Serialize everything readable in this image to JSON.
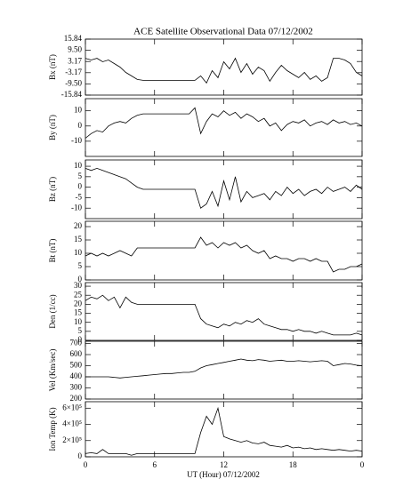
{
  "title": "ACE Satellite Observational Data   07/12/2002",
  "xlabel": "UT (Hour)  07/12/2002",
  "chart_data": [
    {
      "type": "line",
      "ylabel": "Bx (nT)",
      "xlim": [
        0,
        24
      ],
      "xticks": [
        0,
        6,
        12,
        18,
        {
          "value": 24,
          "label": "0"
        }
      ],
      "ylim": [
        -15.84,
        15.84
      ],
      "yticks": [
        15.84,
        {
          "value": 9.5,
          "label": "9.50"
        },
        3.17,
        -3.17,
        {
          "value": -9.5,
          "label": "-9.50"
        },
        -15.84
      ],
      "x": [
        0,
        0.5,
        1,
        1.5,
        2,
        2.5,
        3,
        3.5,
        4,
        4.5,
        5,
        5.5,
        6,
        6.5,
        7,
        7.5,
        8,
        8.5,
        9,
        9.5,
        10,
        10.5,
        11,
        11.5,
        12,
        12.5,
        13,
        13.5,
        14,
        14.5,
        15,
        15.5,
        16,
        16.5,
        17,
        17.5,
        18,
        18.5,
        19,
        19.5,
        20,
        20.5,
        21,
        21.5,
        22,
        22.5,
        23,
        23.5,
        24
      ],
      "values": [
        5,
        4,
        5,
        3,
        4,
        2,
        0,
        -3,
        -5,
        -7,
        -7.5,
        -7.5,
        -7.5,
        -7.5,
        -7.5,
        -7.5,
        -7.5,
        -7.5,
        -7.5,
        -7.5,
        -5,
        -9,
        -2,
        -6,
        3,
        -1,
        5,
        -3,
        2,
        -4,
        0,
        -2,
        -8,
        -3,
        1,
        -2,
        -4,
        -6,
        -3,
        -7,
        -5,
        -8,
        -6,
        5,
        5,
        4,
        2,
        -3,
        -5
      ]
    },
    {
      "type": "line",
      "ylabel": "By (nT)",
      "xlim": [
        0,
        24
      ],
      "xticks": [
        0,
        6,
        12,
        18,
        {
          "value": 24,
          "label": "0"
        }
      ],
      "ylim": [
        -20,
        18
      ],
      "yticks": [
        10,
        0,
        -10
      ],
      "x": [
        0,
        0.5,
        1,
        1.5,
        2,
        2.5,
        3,
        3.5,
        4,
        4.5,
        5,
        5.5,
        6,
        6.5,
        7,
        7.5,
        8,
        8.5,
        9,
        9.5,
        10,
        10.5,
        11,
        11.5,
        12,
        12.5,
        13,
        13.5,
        14,
        14.5,
        15,
        15.5,
        16,
        16.5,
        17,
        17.5,
        18,
        18.5,
        19,
        19.5,
        20,
        20.5,
        21,
        21.5,
        22,
        22.5,
        23,
        23.5,
        24
      ],
      "values": [
        -8,
        -5,
        -3,
        -4,
        0,
        2,
        3,
        2,
        5,
        7,
        8,
        8,
        8,
        8,
        8,
        8,
        8,
        8,
        8,
        12,
        -5,
        3,
        8,
        6,
        10,
        7,
        9,
        5,
        8,
        6,
        3,
        5,
        0,
        2,
        -3,
        1,
        3,
        2,
        4,
        0,
        2,
        3,
        1,
        4,
        2,
        3,
        1,
        2,
        0
      ]
    },
    {
      "type": "line",
      "ylabel": "Bz (nT)",
      "xlim": [
        0,
        24
      ],
      "xticks": [
        0,
        6,
        12,
        18,
        {
          "value": 24,
          "label": "0"
        }
      ],
      "ylim": [
        -15,
        13
      ],
      "yticks": [
        10,
        5,
        0,
        -5,
        -10
      ],
      "x": [
        0,
        0.5,
        1,
        1.5,
        2,
        2.5,
        3,
        3.5,
        4,
        4.5,
        5,
        5.5,
        6,
        6.5,
        7,
        7.5,
        8,
        8.5,
        9,
        9.5,
        10,
        10.5,
        11,
        11.5,
        12,
        12.5,
        13,
        13.5,
        14,
        14.5,
        15,
        15.5,
        16,
        16.5,
        17,
        17.5,
        18,
        18.5,
        19,
        19.5,
        20,
        20.5,
        21,
        21.5,
        22,
        22.5,
        23,
        23.5,
        24
      ],
      "values": [
        9,
        8,
        9,
        8,
        7,
        6,
        5,
        4,
        2,
        0,
        -1,
        -1,
        -1,
        -1,
        -1,
        -1,
        -1,
        -1,
        -1,
        -1,
        -10,
        -8,
        -2,
        -9,
        3,
        -6,
        5,
        -7,
        -2,
        -5,
        -4,
        -3,
        -6,
        -2,
        -4,
        0,
        -3,
        -1,
        -4,
        -2,
        -1,
        -3,
        0,
        -2,
        -1,
        0,
        -2,
        1,
        -1
      ]
    },
    {
      "type": "line",
      "ylabel": "Bt (nT)",
      "xlim": [
        0,
        24
      ],
      "xticks": [
        0,
        6,
        12,
        18,
        {
          "value": 24,
          "label": "0"
        }
      ],
      "ylim": [
        0,
        22
      ],
      "yticks": [
        0,
        5,
        10,
        15,
        20
      ],
      "x": [
        0,
        0.5,
        1,
        1.5,
        2,
        2.5,
        3,
        3.5,
        4,
        4.5,
        5,
        5.5,
        6,
        6.5,
        7,
        7.5,
        8,
        8.5,
        9,
        9.5,
        10,
        10.5,
        11,
        11.5,
        12,
        12.5,
        13,
        13.5,
        14,
        14.5,
        15,
        15.5,
        16,
        16.5,
        17,
        17.5,
        18,
        18.5,
        19,
        19.5,
        20,
        20.5,
        21,
        21.5,
        22,
        22.5,
        23,
        23.5,
        24
      ],
      "values": [
        9,
        10,
        9,
        10,
        9,
        10,
        11,
        10,
        9,
        12,
        12,
        12,
        12,
        12,
        12,
        12,
        12,
        12,
        12,
        12,
        16,
        13,
        14,
        12,
        14,
        13,
        14,
        12,
        13,
        11,
        10,
        11,
        8,
        9,
        8,
        8,
        7,
        8,
        8,
        7,
        8,
        7,
        7,
        3,
        4,
        4,
        5,
        5,
        6
      ]
    },
    {
      "type": "line",
      "ylabel": "Den (1/cc)",
      "xlim": [
        0,
        24
      ],
      "xticks": [
        0,
        6,
        12,
        18,
        {
          "value": 24,
          "label": "0"
        }
      ],
      "ylim": [
        0,
        32
      ],
      "yticks": [
        0,
        5,
        10,
        15,
        20,
        25,
        30
      ],
      "x": [
        0,
        0.5,
        1,
        1.5,
        2,
        2.5,
        3,
        3.5,
        4,
        4.5,
        5,
        5.5,
        6,
        6.5,
        7,
        7.5,
        8,
        8.5,
        9,
        9.5,
        10,
        10.5,
        11,
        11.5,
        12,
        12.5,
        13,
        13.5,
        14,
        14.5,
        15,
        15.5,
        16,
        16.5,
        17,
        17.5,
        18,
        18.5,
        19,
        19.5,
        20,
        20.5,
        21,
        21.5,
        22,
        22.5,
        23,
        23.5,
        24
      ],
      "values": [
        22,
        24,
        23,
        25,
        22,
        24,
        18,
        24,
        21,
        20,
        20,
        20,
        20,
        20,
        20,
        20,
        20,
        20,
        20,
        20,
        12,
        9,
        8,
        7,
        9,
        8,
        10,
        9,
        11,
        10,
        12,
        9,
        8,
        7,
        6,
        6,
        5,
        6,
        5,
        5,
        4,
        5,
        4,
        3,
        3,
        3,
        3,
        4,
        3
      ]
    },
    {
      "type": "line",
      "ylabel": "Vel (Km/sec)",
      "xlim": [
        0,
        24
      ],
      "xticks": [
        0,
        6,
        12,
        18,
        {
          "value": 24,
          "label": "0"
        }
      ],
      "ylim": [
        200,
        720
      ],
      "yticks": [
        200,
        300,
        400,
        500,
        600,
        700
      ],
      "x": [
        0,
        0.5,
        1,
        1.5,
        2,
        2.5,
        3,
        3.5,
        4,
        4.5,
        5,
        5.5,
        6,
        6.5,
        7,
        7.5,
        8,
        8.5,
        9,
        9.5,
        10,
        10.5,
        11,
        11.5,
        12,
        12.5,
        13,
        13.5,
        14,
        14.5,
        15,
        15.5,
        16,
        16.5,
        17,
        17.5,
        18,
        18.5,
        19,
        19.5,
        20,
        20.5,
        21,
        21.5,
        22,
        22.5,
        23,
        23.5,
        24
      ],
      "values": [
        400,
        400,
        400,
        400,
        400,
        395,
        390,
        395,
        400,
        405,
        410,
        415,
        420,
        425,
        430,
        430,
        435,
        440,
        440,
        450,
        480,
        500,
        510,
        520,
        530,
        540,
        550,
        560,
        550,
        545,
        555,
        550,
        540,
        545,
        550,
        540,
        540,
        545,
        540,
        535,
        540,
        545,
        540,
        500,
        510,
        520,
        515,
        505,
        500
      ]
    },
    {
      "type": "line",
      "ylabel": "Ion Temp (K)",
      "xlim": [
        0,
        24
      ],
      "xticks": [
        0,
        6,
        12,
        18,
        {
          "value": 24,
          "label": "0"
        }
      ],
      "ylim": [
        0,
        680000
      ],
      "yticks": [
        0,
        {
          "value": 200000,
          "label": "2×10⁵"
        },
        {
          "value": 400000,
          "label": "4×10⁵"
        },
        {
          "value": 600000,
          "label": "6×10⁵"
        }
      ],
      "x": [
        0,
        0.5,
        1,
        1.5,
        2,
        2.5,
        3,
        3.5,
        4,
        4.5,
        5,
        5.5,
        6,
        6.5,
        7,
        7.5,
        8,
        8.5,
        9,
        9.5,
        10,
        10.5,
        11,
        11.5,
        12,
        12.5,
        13,
        13.5,
        14,
        14.5,
        15,
        15.5,
        16,
        16.5,
        17,
        17.5,
        18,
        18.5,
        19,
        19.5,
        20,
        20.5,
        21,
        21.5,
        22,
        22.5,
        23,
        23.5,
        24
      ],
      "values": [
        40000,
        50000,
        40000,
        90000,
        40000,
        40000,
        40000,
        40000,
        20000,
        40000,
        40000,
        40000,
        40000,
        40000,
        40000,
        40000,
        40000,
        40000,
        40000,
        40000,
        300000,
        500000,
        400000,
        600000,
        250000,
        220000,
        200000,
        180000,
        200000,
        170000,
        160000,
        180000,
        140000,
        130000,
        120000,
        140000,
        110000,
        120000,
        100000,
        110000,
        90000,
        100000,
        90000,
        80000,
        90000,
        80000,
        70000,
        80000,
        70000
      ]
    }
  ]
}
